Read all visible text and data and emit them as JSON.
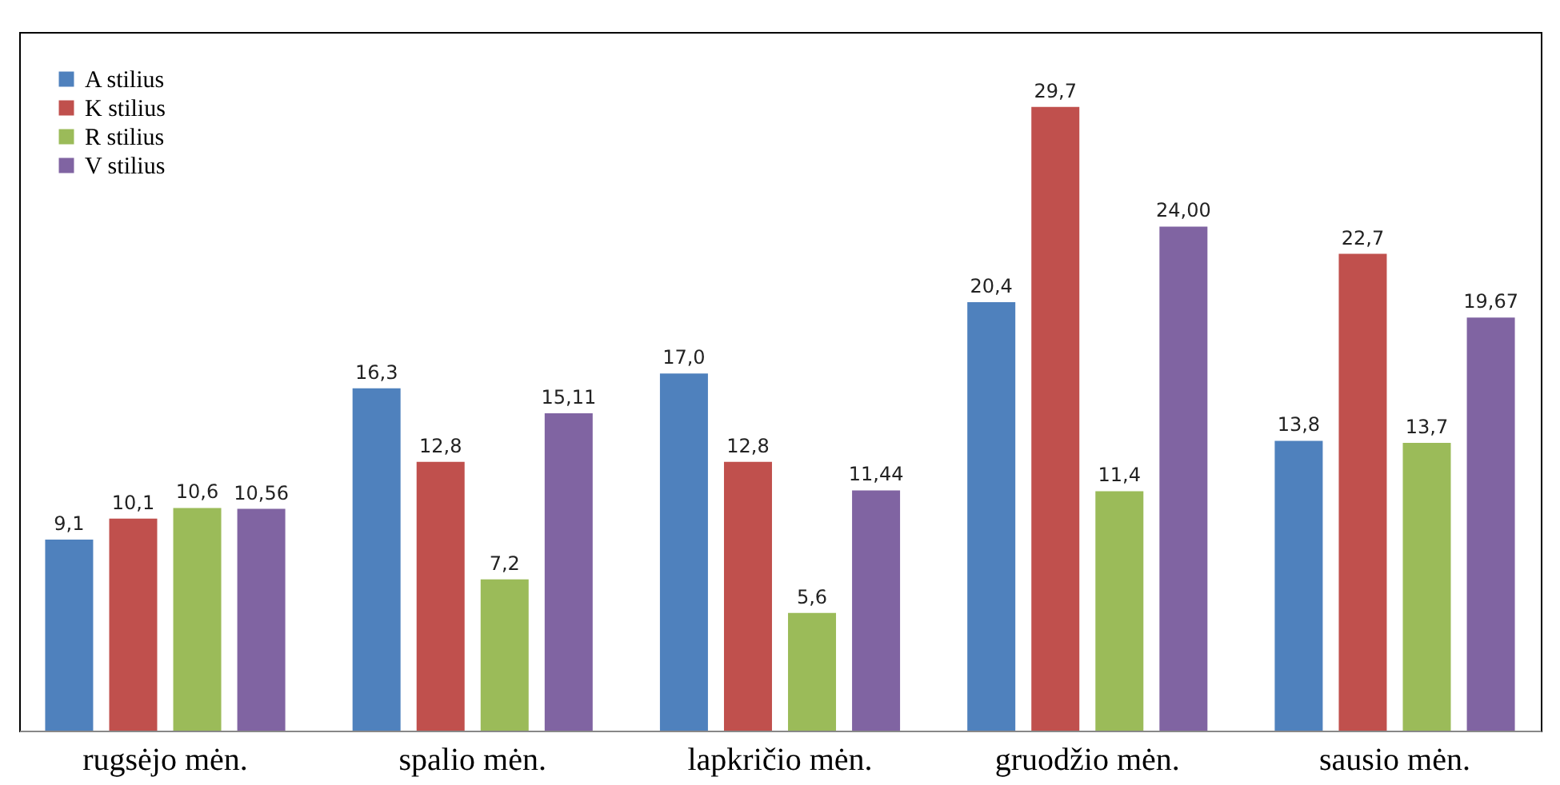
{
  "chart_data": {
    "type": "bar",
    "categories": [
      "rugsėjo mėn.",
      "spalio mėn.",
      "lapkričio mėn.",
      "gruodžio mėn.",
      "sausio mėn."
    ],
    "series": [
      {
        "name": "A stilius",
        "color": "#4f81bd",
        "values": [
          9.1,
          16.3,
          17.0,
          20.4,
          13.8
        ],
        "value_labels": [
          "9,1",
          "16,3",
          "17,0",
          "20,4",
          "13,8"
        ]
      },
      {
        "name": "K stilius",
        "color": "#c0504d",
        "values": [
          10.1,
          12.8,
          12.8,
          29.7,
          22.7
        ],
        "value_labels": [
          "10,1",
          "12,8",
          "12,8",
          "29,7",
          "22,7"
        ]
      },
      {
        "name": "R stilius",
        "color": "#9bbb59",
        "values": [
          10.6,
          7.2,
          5.6,
          11.4,
          13.7
        ],
        "value_labels": [
          "10,6",
          "7,2",
          "5,6",
          "11,4",
          "13,7"
        ]
      },
      {
        "name": "V stilius",
        "color": "#8064a2",
        "values": [
          10.56,
          15.11,
          11.44,
          24.0,
          19.67
        ],
        "value_labels": [
          "10,56",
          "15,11",
          "11,44",
          "24,00",
          "19,67"
        ]
      }
    ],
    "legend": "top left"
  }
}
